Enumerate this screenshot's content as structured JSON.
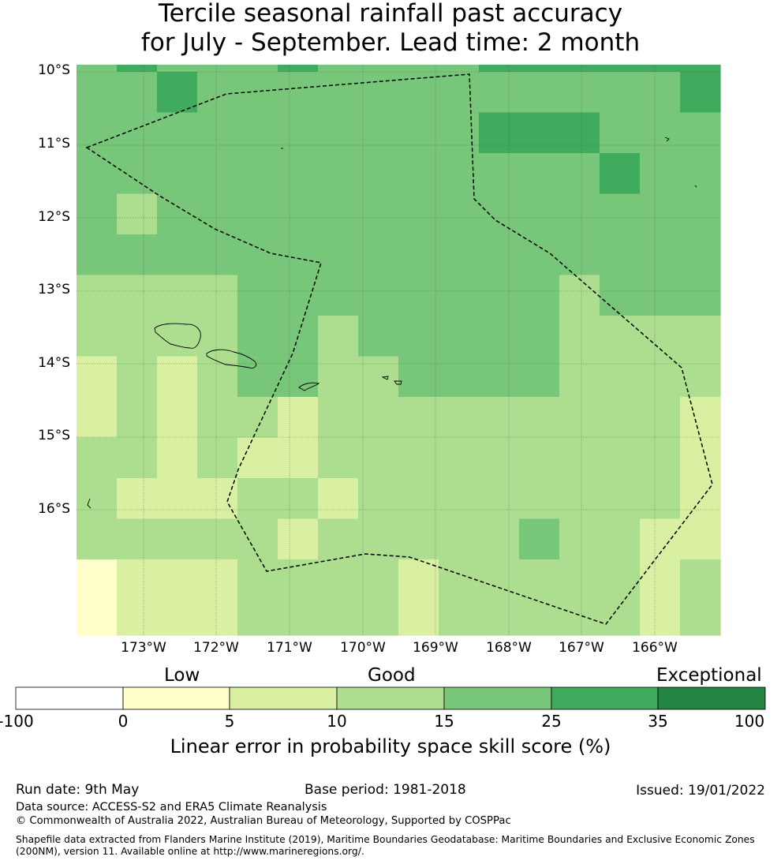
{
  "title": {
    "line1": "Tercile seasonal rainfall past accuracy",
    "line2": "for July - September. Lead time: 2 month"
  },
  "map": {
    "lat_labels": [
      "10°S",
      "11°S",
      "12°S",
      "13°S",
      "14°S",
      "15°S",
      "16°S"
    ],
    "lon_labels": [
      "173°W",
      "172°W",
      "171°W",
      "170°W",
      "169°W",
      "168°W",
      "167°W",
      "166°W"
    ],
    "cell_levels": [
      [
        4,
        5,
        4,
        4,
        4,
        5,
        4,
        4,
        4,
        4,
        5,
        5,
        5,
        5,
        5,
        5
      ],
      [
        4,
        4,
        5,
        4,
        4,
        4,
        4,
        4,
        4,
        4,
        4,
        4,
        4,
        4,
        4,
        5
      ],
      [
        4,
        4,
        4,
        4,
        4,
        4,
        4,
        4,
        4,
        4,
        5,
        5,
        5,
        4,
        4,
        4
      ],
      [
        4,
        4,
        4,
        4,
        4,
        4,
        4,
        4,
        4,
        4,
        4,
        4,
        4,
        5,
        4,
        4
      ],
      [
        4,
        3,
        4,
        4,
        4,
        4,
        4,
        4,
        4,
        4,
        4,
        4,
        4,
        4,
        4,
        4
      ],
      [
        4,
        4,
        4,
        4,
        4,
        4,
        4,
        4,
        4,
        4,
        4,
        4,
        4,
        4,
        4,
        4
      ],
      [
        3,
        3,
        3,
        3,
        4,
        4,
        4,
        4,
        4,
        4,
        4,
        4,
        3,
        4,
        4,
        4
      ],
      [
        3,
        3,
        3,
        3,
        4,
        4,
        3,
        4,
        4,
        4,
        4,
        4,
        3,
        3,
        3,
        3
      ],
      [
        2,
        3,
        2,
        3,
        4,
        4,
        3,
        3,
        4,
        4,
        4,
        4,
        3,
        3,
        3,
        3
      ],
      [
        2,
        3,
        2,
        3,
        3,
        2,
        3,
        3,
        3,
        3,
        3,
        3,
        3,
        3,
        3,
        2
      ],
      [
        3,
        3,
        2,
        3,
        2,
        2,
        3,
        3,
        3,
        3,
        3,
        3,
        3,
        3,
        3,
        2
      ],
      [
        3,
        2,
        2,
        2,
        3,
        3,
        2,
        3,
        3,
        3,
        3,
        3,
        3,
        3,
        3,
        2
      ],
      [
        3,
        3,
        3,
        3,
        3,
        2,
        3,
        3,
        3,
        3,
        3,
        4,
        3,
        3,
        2,
        2
      ],
      [
        1,
        2,
        2,
        2,
        3,
        3,
        3,
        3,
        2,
        3,
        3,
        3,
        3,
        3,
        2,
        3
      ]
    ]
  },
  "colorbar": {
    "categories": [
      "Low",
      "Good",
      "Exceptional"
    ],
    "tick_labels": [
      "-100",
      "0",
      "5",
      "10",
      "15",
      "25",
      "35",
      "100"
    ],
    "colors": [
      "#ffffff",
      "#ffffcc",
      "#d9f0a3",
      "#addd8e",
      "#78c679",
      "#41ab5d",
      "#238443"
    ],
    "xlabel": "Linear error in probability space skill score (%)"
  },
  "footer": {
    "run_date": "Run date: 9th May",
    "base_period": "Base period: 1981-2018",
    "issued": "Issued: 19/01/2022",
    "data_source": "Data source: ACCESS-S2 and ERA5 Climate Reanalysis",
    "copyright": "© Commonwealth of Australia 2022, Australian Bureau of Meteorology, Supported by COSPPac",
    "shapefile_note": "Shapefile data extracted from Flanders Marine Institute (2019), Maritime Boundaries Geodatabase: Maritime Boundaries and Exclusive Economic Zones (200NM), version 11. Available online at http://www.marineregions.org/."
  }
}
